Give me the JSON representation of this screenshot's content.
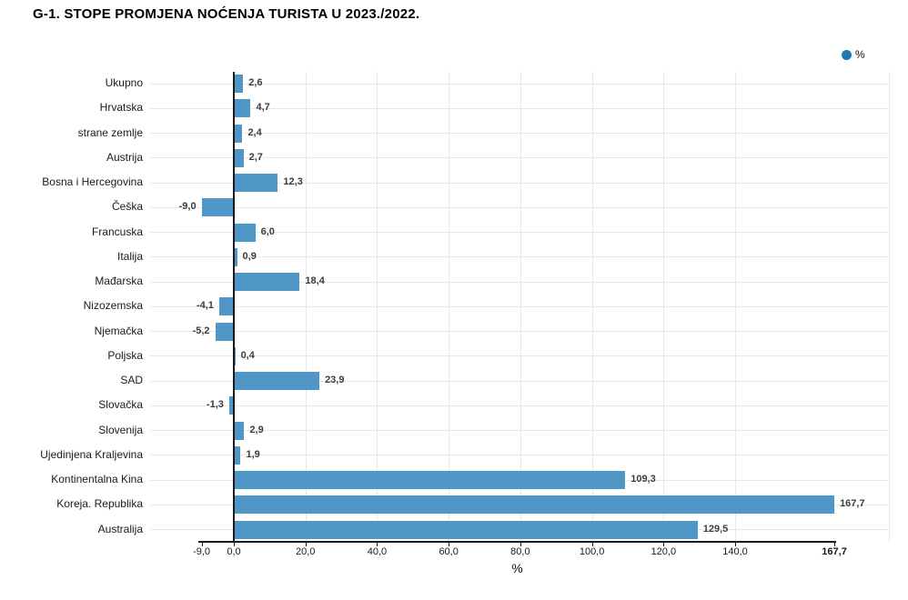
{
  "header": {
    "title": "G-1. STOPE PROMJENA NOĆENJA TURISTA U 2023./2022."
  },
  "legend": {
    "label": "%"
  },
  "colors": {
    "bar": "#5096c6",
    "legend_dot": "#1f77b4",
    "grid": "#e8e8e8",
    "axis": "#1a1a1a",
    "value_label": "#3d3d3d"
  },
  "chart_data": {
    "type": "bar",
    "orientation": "horizontal",
    "title": "G-1. STOPE PROMJENA NOĆENJA TURISTA U 2023./2022.",
    "xlabel": "%",
    "ylabel": "",
    "xlim": [
      -9.0,
      167.7
    ],
    "grid": "vertical gridlines at 20-unit steps; light leader line at each category center",
    "legend_position": "top-right",
    "categories": [
      "Ukupno",
      "Hrvatska",
      "strane zemlje",
      "Austrija",
      "Bosna i Hercegovina",
      "Češka",
      "Francuska",
      "Italija",
      "Mađarska",
      "Nizozemska",
      "Njemačka",
      "Poljska",
      "SAD",
      "Slovačka",
      "Slovenija",
      "Ujedinjena Kraljevina",
      "Kontinentalna Kina",
      "Koreja. Republika",
      "Australija"
    ],
    "values": [
      2.6,
      4.7,
      2.4,
      2.7,
      12.3,
      -9.0,
      6.0,
      0.9,
      18.4,
      -4.1,
      -5.2,
      0.4,
      23.9,
      -1.3,
      2.9,
      1.9,
      109.3,
      167.7,
      129.5
    ],
    "value_labels": [
      "2,6",
      "4,7",
      "2,4",
      "2,7",
      "12,3",
      "-9,0",
      "6,0",
      "0,9",
      "18,4",
      "-4,1",
      "-5,2",
      "0,4",
      "23,9",
      "-1,3",
      "2,9",
      "1,9",
      "109,3",
      "167,7",
      "129,5"
    ],
    "x_ticks": [
      {
        "value": -9,
        "label": "-9,0"
      },
      {
        "value": 0,
        "label": "0,0"
      },
      {
        "value": 20,
        "label": "20,0"
      },
      {
        "value": 40,
        "label": "40,0"
      },
      {
        "value": 60,
        "label": "60,0"
      },
      {
        "value": 80,
        "label": "80,0"
      },
      {
        "value": 100,
        "label": "100,0"
      },
      {
        "value": 120,
        "label": "120,0"
      },
      {
        "value": 140,
        "label": "140,0"
      },
      {
        "value": 167.7,
        "label": "167,7"
      }
    ]
  }
}
